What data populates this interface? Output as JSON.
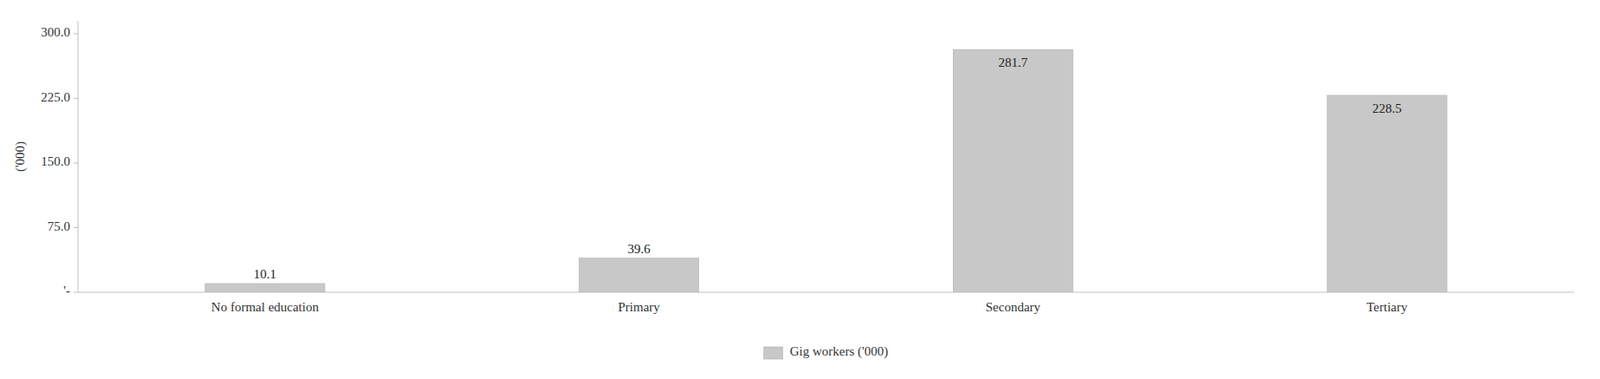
{
  "chart_data": {
    "type": "bar",
    "categories": [
      "No formal education",
      "Primary",
      "Secondary",
      "Tertiary"
    ],
    "series": [
      {
        "name": "Gig workers ('000)",
        "color": "#c8c8c8",
        "values": [
          10.1,
          39.6,
          281.7,
          228.5
        ]
      }
    ],
    "ylabel": "('000)",
    "ylim": [
      0,
      315
    ],
    "yticks": [
      {
        "value": 0,
        "label": "'-"
      },
      {
        "value": 75,
        "label": "75.0"
      },
      {
        "value": 150,
        "label": "150.0"
      },
      {
        "value": 225,
        "label": "225.0"
      },
      {
        "value": 300,
        "label": "300.0"
      }
    ],
    "grid": false,
    "legend": "bottom",
    "data_labels": true
  }
}
